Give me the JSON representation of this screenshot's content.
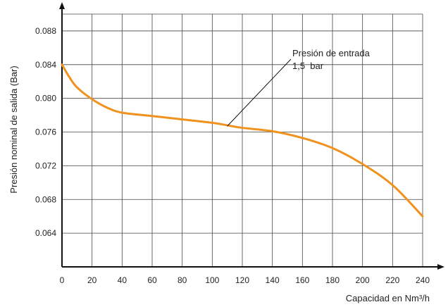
{
  "chart_data": {
    "type": "line",
    "title": "",
    "xlabel": "Capacidad en Nm³/h",
    "ylabel": "Presión nominal de salida (Bar)",
    "xlim": [
      0,
      240
    ],
    "ylim": [
      0.06,
      0.09
    ],
    "grid": true,
    "x_ticks": [
      0,
      20,
      40,
      60,
      80,
      100,
      120,
      140,
      160,
      180,
      200,
      220,
      240
    ],
    "x_tick_labels": [
      "0",
      "20",
      "40",
      "60",
      "80",
      "100",
      "120",
      "140",
      "160",
      "180",
      "200",
      "220",
      "240"
    ],
    "y_ticks": [
      0.064,
      0.068,
      0.072,
      0.076,
      0.08,
      0.084,
      0.088
    ],
    "y_tick_labels": [
      "0.064",
      "0.068",
      "0.072",
      "0.076",
      "0.080",
      "0.084",
      "0.088"
    ],
    "annotation": {
      "lines": [
        "Presión de entrada",
        "1,5  bar"
      ],
      "points_to": [
        110,
        0.0767
      ]
    },
    "series": [
      {
        "color": "#f0921e",
        "x": [
          0,
          5,
          10,
          20,
          30,
          40,
          60,
          80,
          100,
          110,
          120,
          140,
          160,
          180,
          200,
          220,
          240
        ],
        "y": [
          0.084,
          0.0825,
          0.0813,
          0.0799,
          0.0789,
          0.0783,
          0.0779,
          0.0775,
          0.0771,
          0.0768,
          0.0765,
          0.0761,
          0.0753,
          0.0741,
          0.0722,
          0.0697,
          0.066
        ]
      }
    ]
  }
}
